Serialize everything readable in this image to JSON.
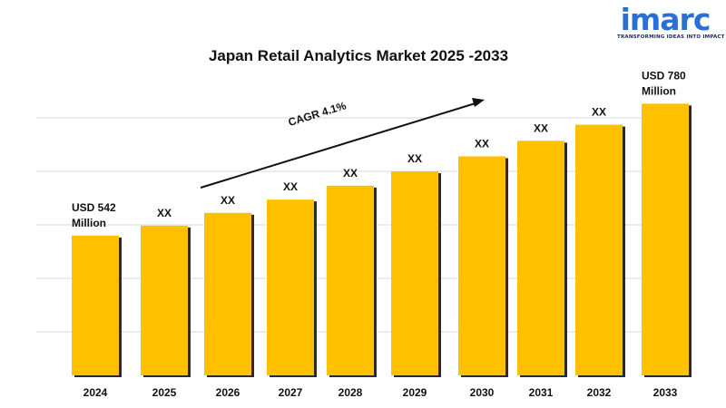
{
  "logo": {
    "wordmark": "imarc",
    "tagline": "TRANSFORMING IDEAS INTO IMPACT",
    "color": "#2a6fd6"
  },
  "chart_data": {
    "type": "bar",
    "title": "Japan Retail Analytics Market 2025 -2033",
    "xlabel": "",
    "ylabel": "",
    "categories": [
      "2024",
      "2025",
      "2026",
      "2027",
      "2028",
      "2029",
      "2030",
      "2031",
      "2032",
      "2033"
    ],
    "values": [
      542,
      560,
      583,
      607,
      632,
      658,
      685,
      713,
      742,
      780
    ],
    "value_labels": [
      [
        "USD 542",
        "Million"
      ],
      [
        "XX"
      ],
      [
        "XX"
      ],
      [
        "XX"
      ],
      [
        "XX"
      ],
      [
        "XX"
      ],
      [
        "XX"
      ],
      [
        "XX"
      ],
      [
        "XX"
      ],
      [
        "USD 780",
        "Million"
      ]
    ],
    "ylim": [
      290,
      810
    ],
    "grid": true,
    "legend": "none",
    "annotation": "CAGR 4.1%",
    "bar_color": "#ffc000",
    "bar_shadow_color": "#2b2b2b"
  }
}
